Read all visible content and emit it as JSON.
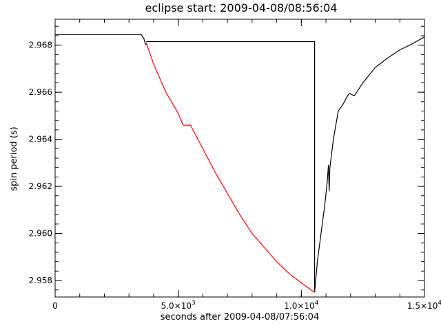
{
  "chart_data": {
    "type": "line",
    "title": "eclipse start: 2009-04-08/08:56:04",
    "xlabel": "seconds after 2009-04-08/07:56:04",
    "ylabel": "spin period (s)",
    "xlim": [
      0,
      15000
    ],
    "ylim": [
      2.9573,
      2.9691
    ],
    "x_ticks": [
      {
        "value": 0,
        "base": "0",
        "exp": ""
      },
      {
        "value": 5000,
        "base": "5.0×10",
        "exp": "3"
      },
      {
        "value": 10000,
        "base": "1.0×10",
        "exp": "4"
      },
      {
        "value": 15000,
        "base": "1.5×10",
        "exp": "4"
      }
    ],
    "x_minor_step": 1000,
    "y_ticks": [
      {
        "value": 2.958,
        "label": "2.958"
      },
      {
        "value": 2.96,
        "label": "2.960"
      },
      {
        "value": 2.962,
        "label": "2.962"
      },
      {
        "value": 2.964,
        "label": "2.964"
      },
      {
        "value": 2.966,
        "label": "2.966"
      },
      {
        "value": 2.968,
        "label": "2.968"
      }
    ],
    "y_minor_step": 0.0004,
    "grid": false,
    "series": [
      {
        "color": "#000000",
        "role": "pre-eclipse",
        "points": [
          [
            0,
            2.96845
          ],
          [
            3500,
            2.96845
          ],
          [
            3550,
            2.96835
          ],
          [
            3600,
            2.9683
          ],
          [
            3650,
            2.9681
          ],
          [
            3700,
            2.968
          ]
        ]
      },
      {
        "color": "#000000",
        "role": "reference-step",
        "points": [
          [
            3700,
            2.96815
          ],
          [
            10540,
            2.96815
          ],
          [
            10540,
            2.9576
          ]
        ]
      },
      {
        "color": "#ff0000",
        "role": "eclipse-model",
        "points": [
          [
            3700,
            2.9681
          ],
          [
            4000,
            2.9672
          ],
          [
            4500,
            2.966
          ],
          [
            5000,
            2.9651
          ],
          [
            5200,
            2.9646
          ],
          [
            5500,
            2.9646
          ],
          [
            6000,
            2.9636
          ],
          [
            6500,
            2.9626
          ],
          [
            7000,
            2.9617
          ],
          [
            7500,
            2.9608
          ],
          [
            8000,
            2.96
          ],
          [
            8500,
            2.9594
          ],
          [
            9000,
            2.9588
          ],
          [
            9500,
            2.9583
          ],
          [
            10000,
            2.9579
          ],
          [
            10540,
            2.9575
          ]
        ]
      },
      {
        "color": "#000000",
        "role": "recovery",
        "points": [
          [
            10540,
            2.9575
          ],
          [
            10650,
            2.9588
          ],
          [
            10800,
            2.96
          ],
          [
            10950,
            2.9612
          ],
          [
            11050,
            2.9622
          ],
          [
            11100,
            2.9629
          ],
          [
            11130,
            2.9618
          ],
          [
            11160,
            2.9628
          ],
          [
            11300,
            2.964
          ],
          [
            11500,
            2.9652
          ],
          [
            11700,
            2.9655
          ],
          [
            11850,
            2.9658
          ],
          [
            11950,
            2.96595
          ],
          [
            12050,
            2.9659
          ],
          [
            12150,
            2.96585
          ],
          [
            12250,
            2.966
          ],
          [
            12500,
            2.9664
          ],
          [
            13000,
            2.96705
          ],
          [
            13500,
            2.96745
          ],
          [
            14000,
            2.9678
          ],
          [
            14500,
            2.96805
          ],
          [
            15000,
            2.96835
          ]
        ]
      }
    ]
  }
}
